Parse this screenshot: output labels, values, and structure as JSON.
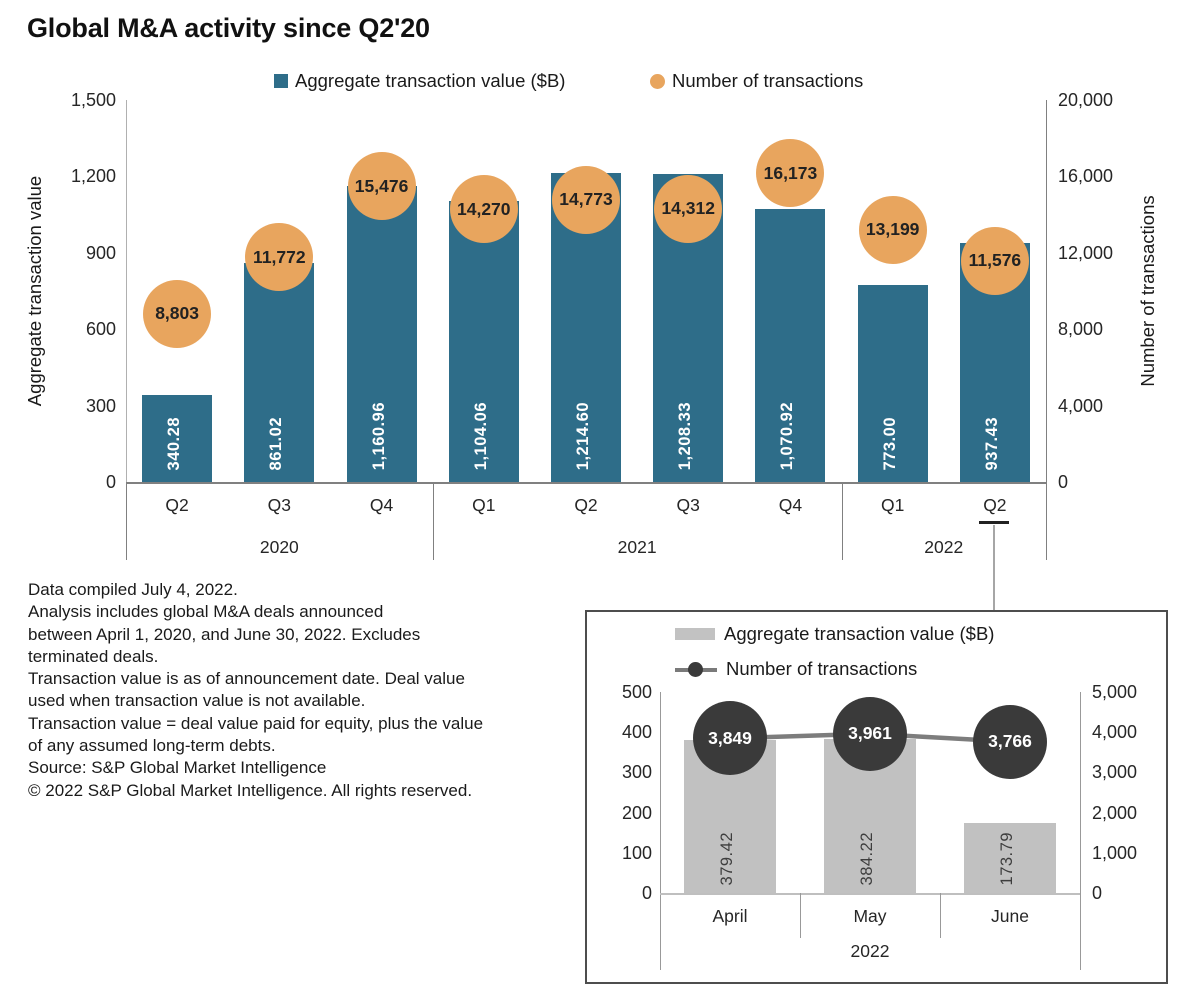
{
  "colors": {
    "bar_teal": "#2e6d89",
    "bubble_orange": "#e8a55e",
    "inset_bar_gray": "#c1c1c1",
    "inset_bubble_dark": "#3a3a3a",
    "inset_line_gray": "#7d7d7d",
    "axis_gray": "#808080",
    "axis_light": "#b0b0b0"
  },
  "chart_data": [
    {
      "id": "main",
      "type": "bar",
      "title": "Global M&A activity since Q2'20",
      "legend_position": "top",
      "grid": false,
      "categories": [
        "Q2",
        "Q3",
        "Q4",
        "Q1",
        "Q2",
        "Q3",
        "Q4",
        "Q1",
        "Q2"
      ],
      "year_groups": [
        {
          "label": "2020",
          "count": 3
        },
        {
          "label": "2021",
          "count": 4
        },
        {
          "label": "2022",
          "count": 2
        }
      ],
      "series": [
        {
          "name": "Aggregate transaction value ($B)",
          "plot": "bar",
          "axis": "left",
          "color": "#2e6d89",
          "values": [
            340.28,
            861.02,
            1160.96,
            1104.06,
            1214.6,
            1208.33,
            1070.92,
            773.0,
            937.43
          ],
          "labels": [
            "340.28",
            "861.02",
            "1,160.96",
            "1,104.06",
            "1,214.60",
            "1,208.33",
            "1,070.92",
            "773.00",
            "937.43"
          ]
        },
        {
          "name": "Number of transactions",
          "plot": "point",
          "axis": "right",
          "color": "#e8a55e",
          "values": [
            8803,
            11772,
            15476,
            14270,
            14773,
            14312,
            16173,
            13199,
            11576
          ],
          "labels": [
            "8,803",
            "11,772",
            "15,476",
            "14,270",
            "14,773",
            "14,312",
            "16,173",
            "13,199",
            "11,576"
          ]
        }
      ],
      "left_axis": {
        "title": "Aggregate transaction value",
        "max": 1500,
        "ticks": [
          0,
          300,
          600,
          900,
          1200,
          1500
        ],
        "tick_labels": [
          "0",
          "300",
          "600",
          "900",
          "1,200",
          "1,500"
        ]
      },
      "right_axis": {
        "title": "Number of transactions",
        "max": 20000,
        "ticks": [
          0,
          4000,
          8000,
          12000,
          16000,
          20000
        ],
        "tick_labels": [
          "0",
          "4,000",
          "8,000",
          "12,000",
          "16,000",
          "20,000"
        ]
      },
      "callout_category": "Q2 2022"
    },
    {
      "id": "inset",
      "type": "bar",
      "title": "",
      "legend_position": "top",
      "grid": false,
      "categories": [
        "April",
        "May",
        "June"
      ],
      "year_groups": [
        {
          "label": "2022",
          "count": 3
        }
      ],
      "series": [
        {
          "name": "Aggregate transaction value ($B)",
          "plot": "bar",
          "axis": "left",
          "color": "#c1c1c1",
          "values": [
            379.42,
            384.22,
            173.79
          ],
          "labels": [
            "379.42",
            "384.22",
            "173.79"
          ]
        },
        {
          "name": "Number of transactions",
          "plot": "line+point",
          "axis": "right",
          "color": "#3a3a3a",
          "line_color": "#7d7d7d",
          "values": [
            3849,
            3961,
            3766
          ],
          "labels": [
            "3,849",
            "3,961",
            "3,766"
          ]
        }
      ],
      "left_axis": {
        "title": "",
        "max": 500,
        "ticks": [
          0,
          100,
          200,
          300,
          400,
          500
        ],
        "tick_labels": [
          "0",
          "100",
          "200",
          "300",
          "400",
          "500"
        ]
      },
      "right_axis": {
        "title": "",
        "max": 5000,
        "ticks": [
          0,
          1000,
          2000,
          3000,
          4000,
          5000
        ],
        "tick_labels": [
          "0",
          "1,000",
          "2,000",
          "3,000",
          "4,000",
          "5,000"
        ]
      }
    }
  ],
  "footnote_lines": [
    "Data compiled July 4, 2022.",
    "Analysis includes global M&A deals announced",
    "between April 1, 2020, and June 30, 2022. Excludes",
    "terminated deals.",
    "Transaction value is as of announcement date. Deal value",
    "used when transaction value is not available.",
    "Transaction value = deal value paid for equity, plus the value",
    "of any assumed long-term debts.",
    "Source: S&P Global Market Intelligence",
    "© 2022 S&P Global Market Intelligence. All rights reserved."
  ]
}
